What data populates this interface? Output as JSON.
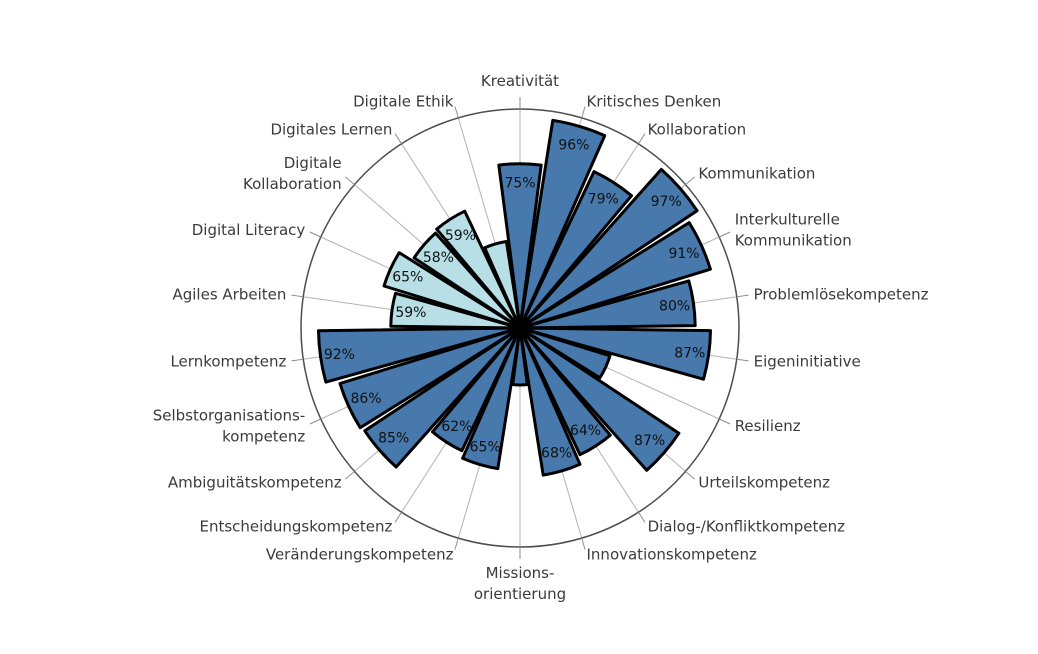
{
  "meta": {
    "background_color": "#ffffff",
    "language": "de"
  },
  "chart_data": {
    "type": "bar",
    "subtype": "polar-wind-rose",
    "title": "",
    "unit": "%",
    "angular_start": "top",
    "direction": "clockwise",
    "radial_axis": {
      "min": 0,
      "max": 100,
      "outer_ring": true,
      "spokes": true,
      "ticks_outside": true
    },
    "legend": null,
    "style": {
      "bar_fill_core": "#4779AD",
      "bar_fill_digital": "#B8DFE6",
      "bar_outline": "#000000",
      "ring_color": "#4d4d4d",
      "spoke_color": "#b3b3b3",
      "tick_color": "#8f8f8f",
      "label_color": "#3b3b3b",
      "value_label_color": "#111111"
    },
    "points": [
      {
        "label": "Kreativität",
        "lines": [
          "Kreativität"
        ],
        "value": 75,
        "value_label": "75%",
        "group": "core"
      },
      {
        "label": "Kritisches Denken",
        "lines": [
          "Kritisches Denken"
        ],
        "value": 96,
        "value_label": "96%",
        "group": "core"
      },
      {
        "label": "Kollaboration",
        "lines": [
          "Kollaboration"
        ],
        "value": 79,
        "value_label": "79%",
        "group": "core"
      },
      {
        "label": "Kommunikation",
        "lines": [
          "Kommunikation"
        ],
        "value": 97,
        "value_label": "97%",
        "group": "core"
      },
      {
        "label": "Interkulturelle Kommunikation",
        "lines": [
          "Interkulturelle",
          "Kommunikation"
        ],
        "value": 91,
        "value_label": "91%",
        "group": "core"
      },
      {
        "label": "Problemlösekompetenz",
        "lines": [
          "Problemlösekompetenz"
        ],
        "value": 80,
        "value_label": "80%",
        "group": "core"
      },
      {
        "label": "Eigeninitiative",
        "lines": [
          "Eigeninitiative"
        ],
        "value": 87,
        "value_label": "87%",
        "group": "core"
      },
      {
        "label": "Resilienz",
        "lines": [
          "Resilienz"
        ],
        "value": 43,
        "value_label": "",
        "value_is_estimate": true,
        "group": "core"
      },
      {
        "label": "Urteilskompetenz",
        "lines": [
          "Urteilskompetenz"
        ],
        "value": 87,
        "value_label": "87%",
        "group": "core"
      },
      {
        "label": "Dialog-/Konfliktkompetenz",
        "lines": [
          "Dialog-/Konfliktkompetenz"
        ],
        "value": 64,
        "value_label": "64%",
        "group": "core"
      },
      {
        "label": "Innovationskompetenz",
        "lines": [
          "Innovationskompetenz"
        ],
        "value": 68,
        "value_label": "68%",
        "group": "core"
      },
      {
        "label": "Missionsorientierung",
        "lines": [
          "Missions-",
          "orientierung"
        ],
        "value": 26,
        "value_label": "",
        "value_is_estimate": true,
        "group": "core"
      },
      {
        "label": "Veränderungskompetenz",
        "lines": [
          "Veränderungskompetenz"
        ],
        "value": 65,
        "value_label": "65%",
        "group": "core"
      },
      {
        "label": "Entscheidungskompetenz",
        "lines": [
          "Entscheidungskompetenz"
        ],
        "value": 62,
        "value_label": "62%",
        "group": "core"
      },
      {
        "label": "Ambiguitätskompetenz",
        "lines": [
          "Ambiguitätskompetenz"
        ],
        "value": 85,
        "value_label": "85%",
        "group": "core"
      },
      {
        "label": "Selbstorganisationskompetenz",
        "lines": [
          "Selbstorganisations-",
          "kompetenz"
        ],
        "value": 86,
        "value_label": "86%",
        "group": "core"
      },
      {
        "label": "Lernkompetenz",
        "lines": [
          "Lernkompetenz"
        ],
        "value": 92,
        "value_label": "92%",
        "group": "core"
      },
      {
        "label": "Agiles Arbeiten",
        "lines": [
          "Agiles Arbeiten"
        ],
        "value": 59,
        "value_label": "59%",
        "group": "digital"
      },
      {
        "label": "Digital Literacy",
        "lines": [
          "Digital Literacy"
        ],
        "value": 65,
        "value_label": "65%",
        "group": "digital"
      },
      {
        "label": "Digitale Kollaboration",
        "lines": [
          "Digitale",
          "Kollaboration"
        ],
        "value": 58,
        "value_label": "58%",
        "group": "digital"
      },
      {
        "label": "Digitales Lernen",
        "lines": [
          "Digitales Lernen"
        ],
        "value": 59,
        "value_label": "59%",
        "group": "digital"
      },
      {
        "label": "Digitale Ethik",
        "lines": [
          "Digitale Ethik"
        ],
        "value": 40,
        "value_label": "",
        "value_is_estimate": true,
        "group": "digital"
      }
    ]
  }
}
